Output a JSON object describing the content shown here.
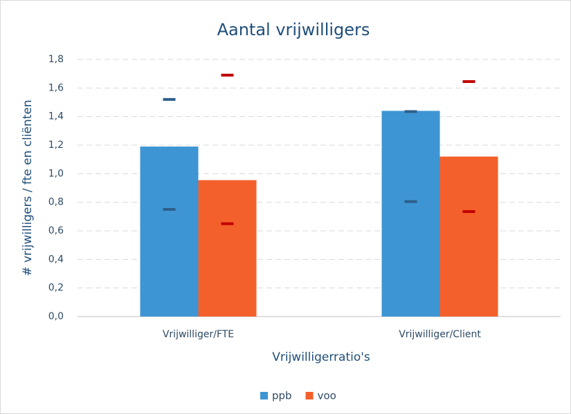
{
  "chart_data": {
    "type": "bar",
    "title": "Aantal vrijwilligers",
    "x_label": "Vrijwilligerratio's",
    "y_label": "# vrijwilligers / fte en cliënten",
    "categories": [
      "Vrijwilliger/FTE",
      "Vrijwilliger/Client"
    ],
    "series": [
      {
        "name": "ppb",
        "color": "#3e95d4",
        "marker_color": "#2e5f8a",
        "values": [
          1.19,
          1.44
        ],
        "max": [
          1.52,
          1.435
        ],
        "min": [
          0.75,
          0.805
        ]
      },
      {
        "name": "voo",
        "color": "#f4602b",
        "marker_color": "#c00000",
        "values": [
          0.955,
          1.12
        ],
        "max": [
          1.69,
          1.645
        ],
        "min": [
          0.65,
          0.735
        ]
      }
    ],
    "ylim": [
      0,
      1.8
    ],
    "yticks": [
      {
        "value": 0,
        "label": "0,0"
      },
      {
        "value": 0.2,
        "label": "0,2"
      },
      {
        "value": 0.4,
        "label": "0,4"
      },
      {
        "value": 0.6,
        "label": "0,6"
      },
      {
        "value": 0.8,
        "label": "0,8"
      },
      {
        "value": 1.0,
        "label": "1,0"
      },
      {
        "value": 1.2,
        "label": "1,2"
      },
      {
        "value": 1.4,
        "label": "1,4"
      },
      {
        "value": 1.6,
        "label": "1,6"
      },
      {
        "value": 1.8,
        "label": "1,8"
      }
    ],
    "grid": true,
    "legend": "bottom"
  }
}
